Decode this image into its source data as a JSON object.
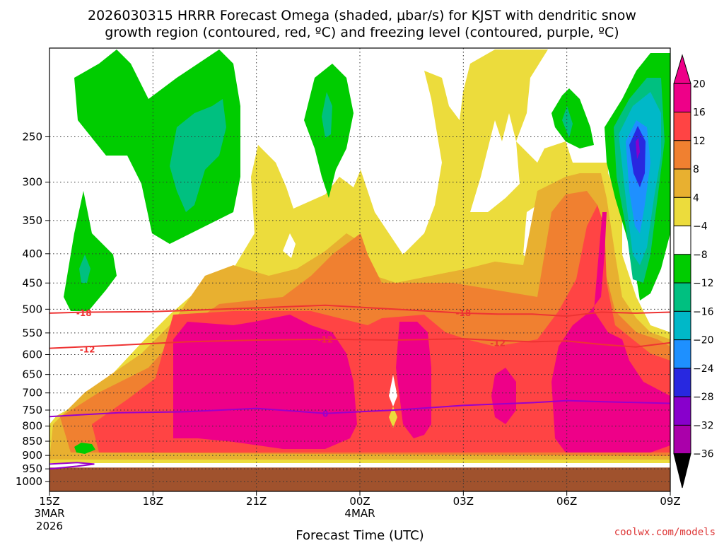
{
  "title_line1": "2026030315 HRRR Forecast Omega (shaded, μbar/s) for KJST with dendritic snow",
  "title_line2": "growth region (contoured, red, ºC) and freezing level (contoured, purple, ºC)",
  "credit": "coolwx.com/models",
  "chart_data": {
    "type": "heatmap",
    "title": "2026030315 HRRR Forecast Omega (shaded, μbar/s) for KJST with dendritic snow growth region (contoured, red, ºC) and freezing level (contoured, purple, ºC)",
    "xlabel": "Forecast Time (UTC)",
    "ylabel": "",
    "xlim": [
      0,
      18
    ],
    "ylim": [
      1040,
      175
    ],
    "y_scale": "log",
    "grid": true,
    "x_ticks": [
      {
        "x": 0,
        "label": "15Z",
        "sub1": "3MAR",
        "sub2": "2026"
      },
      {
        "x": 3,
        "label": "18Z",
        "sub1": "",
        "sub2": ""
      },
      {
        "x": 6,
        "label": "21Z",
        "sub1": "",
        "sub2": ""
      },
      {
        "x": 9,
        "label": "00Z",
        "sub1": "4MAR",
        "sub2": ""
      },
      {
        "x": 12,
        "label": "03Z",
        "sub1": "",
        "sub2": ""
      },
      {
        "x": 15,
        "label": "06Z",
        "sub1": "",
        "sub2": ""
      },
      {
        "x": 18,
        "label": "09Z",
        "sub1": "",
        "sub2": ""
      }
    ],
    "y_ticks": [
      250,
      300,
      350,
      400,
      450,
      500,
      550,
      600,
      650,
      700,
      750,
      800,
      850,
      900,
      950,
      1000
    ],
    "colorbar": {
      "labels": [
        "20",
        "16",
        "12",
        "8",
        "4",
        "−4",
        "−8",
        "−12",
        "−16",
        "−20",
        "−24",
        "−28",
        "−32",
        "−36"
      ],
      "colors": [
        "#ee0088",
        "#ff4444",
        "#f08030",
        "#e8b030",
        "#ecdc3c",
        "#ffffff",
        "#00cc00",
        "#00c080",
        "#00b8c8",
        "#1e90ff",
        "#2828e0",
        "#8800cc",
        "#aa00aa",
        "#999999"
      ]
    },
    "ground": {
      "top_pressure": 945,
      "color": "#a0522d"
    },
    "contours": [
      {
        "name": "dendritic -18",
        "label": "-18",
        "color": "#ee3333",
        "points": [
          [
            0,
            508
          ],
          [
            1,
            506
          ],
          [
            3,
            505
          ],
          [
            5,
            500
          ],
          [
            8,
            492
          ],
          [
            10,
            500
          ],
          [
            12,
            508
          ],
          [
            13,
            510
          ],
          [
            14,
            510
          ],
          [
            15,
            514
          ],
          [
            16,
            506
          ],
          [
            17,
            508
          ],
          [
            18,
            506
          ]
        ],
        "label_at": [
          [
            1,
            508
          ],
          [
            12,
            508
          ]
        ]
      },
      {
        "name": "dendritic -12",
        "label": "-12",
        "color": "#ee3333",
        "points": [
          [
            0,
            585
          ],
          [
            2,
            578
          ],
          [
            4,
            570
          ],
          [
            6,
            566
          ],
          [
            8,
            564
          ],
          [
            10,
            566
          ],
          [
            12,
            563
          ],
          [
            13,
            567
          ],
          [
            14,
            570
          ],
          [
            15,
            568
          ],
          [
            16,
            576
          ],
          [
            17,
            582
          ],
          [
            18,
            572
          ]
        ],
        "label_at": [
          [
            1.1,
            588
          ],
          [
            8.0,
            565
          ],
          [
            13.0,
            573
          ]
        ]
      },
      {
        "name": "freezing 0",
        "label": "0",
        "color": "#9900cc",
        "points": [
          [
            0,
            770
          ],
          [
            2,
            758
          ],
          [
            4,
            755
          ],
          [
            6,
            745
          ],
          [
            8,
            760
          ],
          [
            10,
            750
          ],
          [
            12,
            736
          ],
          [
            14,
            728
          ],
          [
            15,
            722
          ],
          [
            16,
            725
          ],
          [
            18,
            730
          ]
        ],
        "label_at": [
          [
            8.0,
            762
          ]
        ]
      },
      {
        "name": "freezing 0 low",
        "label": "",
        "color": "#9900cc",
        "points": [
          [
            0,
            932
          ],
          [
            0.8,
            926
          ],
          [
            1.3,
            932
          ],
          [
            0.8,
            940
          ],
          [
            0,
            950
          ]
        ],
        "label_at": []
      }
    ]
  }
}
